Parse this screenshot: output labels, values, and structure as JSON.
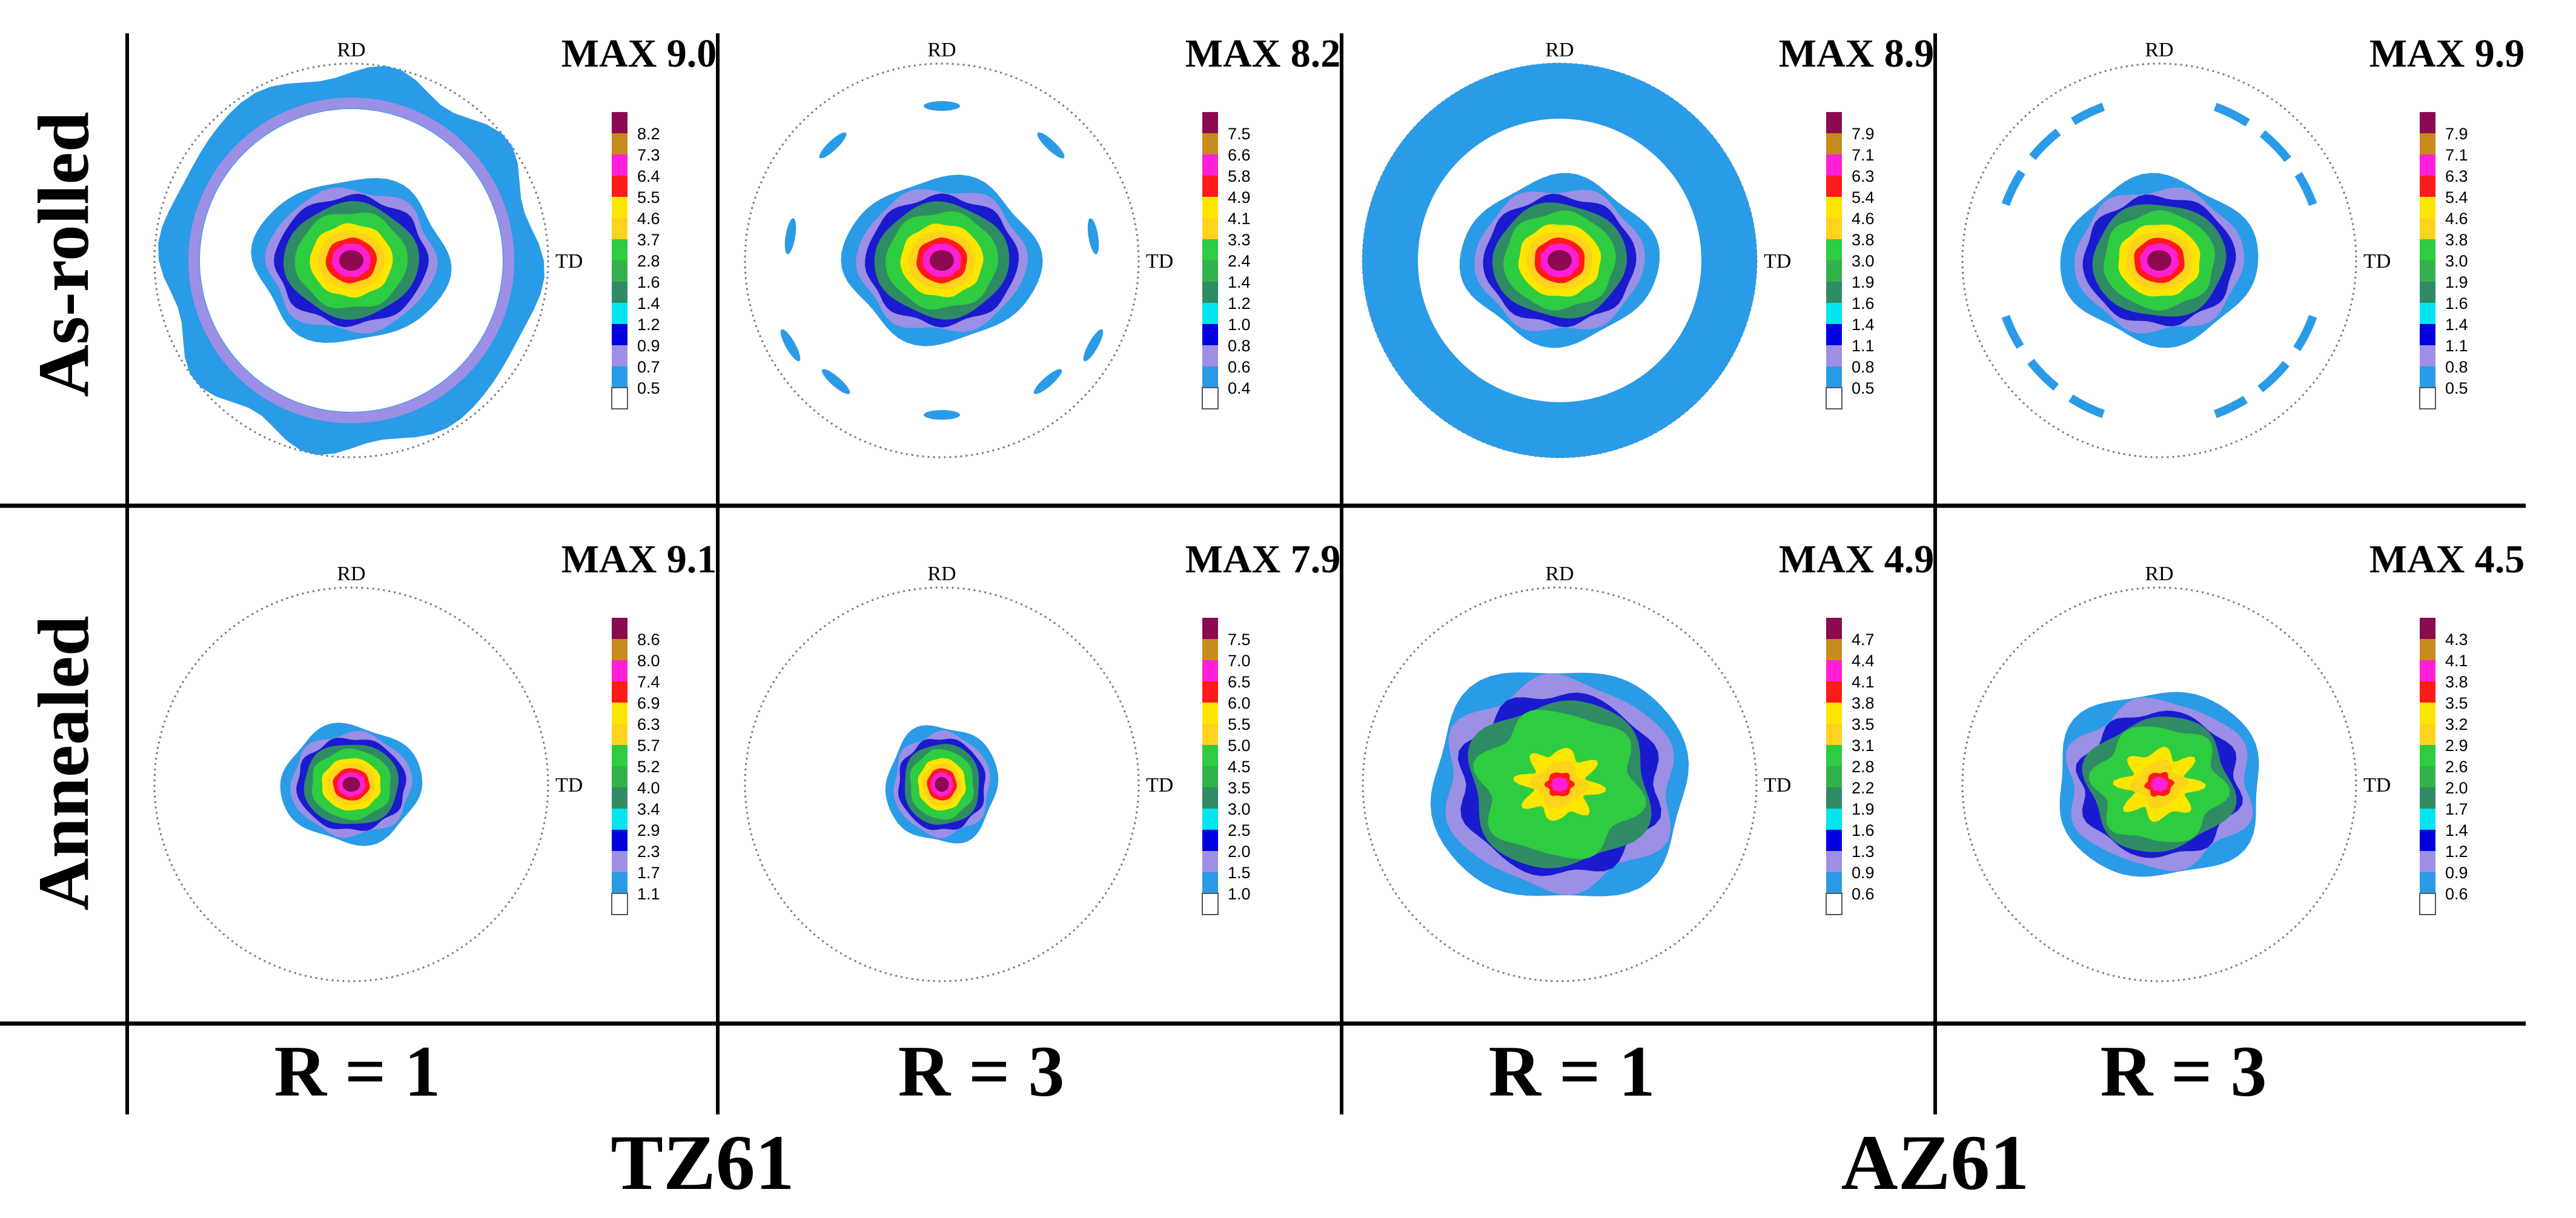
{
  "figure": {
    "rows": [
      {
        "label": "As-rolled"
      },
      {
        "label": "Annealed"
      }
    ],
    "column_labels": [
      "R = 1",
      "R = 3",
      "R = 1",
      "R = 3"
    ],
    "alloys": [
      "TZ61",
      "AZ61"
    ],
    "axis_labels": {
      "rd": "RD",
      "td": "TD"
    },
    "panels": [
      {
        "row": 0,
        "col": 0,
        "max": "MAX 9.0",
        "pattern": "ring-rough",
        "levels": [
          "8.2",
          "7.3",
          "6.4",
          "5.5",
          "4.6",
          "3.7",
          "2.8",
          "1.6",
          "1.4",
          "1.2",
          "0.9",
          "0.7",
          "0.5"
        ]
      },
      {
        "row": 0,
        "col": 1,
        "max": "MAX 8.2",
        "pattern": "dashes",
        "levels": [
          "7.5",
          "6.6",
          "5.8",
          "4.9",
          "4.1",
          "3.3",
          "2.4",
          "1.4",
          "1.2",
          "1.0",
          "0.8",
          "0.6",
          "0.4"
        ]
      },
      {
        "row": 0,
        "col": 2,
        "max": "MAX 8.9",
        "pattern": "ring-full",
        "levels": [
          "7.9",
          "7.1",
          "6.3",
          "5.4",
          "4.6",
          "3.8",
          "3.0",
          "1.9",
          "1.6",
          "1.4",
          "1.1",
          "0.8",
          "0.5"
        ]
      },
      {
        "row": 0,
        "col": 3,
        "max": "MAX 9.9",
        "pattern": "arcs",
        "levels": [
          "7.9",
          "7.1",
          "6.3",
          "5.4",
          "4.6",
          "3.8",
          "3.0",
          "1.9",
          "1.6",
          "1.4",
          "1.1",
          "0.8",
          "0.5"
        ]
      },
      {
        "row": 1,
        "col": 0,
        "max": "MAX 9.1",
        "pattern": "none",
        "levels": [
          "8.6",
          "8.0",
          "7.4",
          "6.9",
          "6.3",
          "5.7",
          "5.2",
          "4.0",
          "3.4",
          "2.9",
          "2.3",
          "1.7",
          "1.1"
        ]
      },
      {
        "row": 1,
        "col": 1,
        "max": "MAX 7.9",
        "pattern": "none",
        "levels": [
          "7.5",
          "7.0",
          "6.5",
          "6.0",
          "5.5",
          "5.0",
          "4.5",
          "3.5",
          "3.0",
          "2.5",
          "2.0",
          "1.5",
          "1.0"
        ]
      },
      {
        "row": 1,
        "col": 2,
        "max": "MAX 4.9",
        "pattern": "spread",
        "levels": [
          "4.7",
          "4.4",
          "4.1",
          "3.8",
          "3.5",
          "3.1",
          "2.8",
          "2.2",
          "1.9",
          "1.6",
          "1.3",
          "0.9",
          "0.6"
        ]
      },
      {
        "row": 1,
        "col": 3,
        "max": "MAX 4.5",
        "pattern": "spread",
        "levels": [
          "4.3",
          "4.1",
          "3.8",
          "3.5",
          "3.2",
          "2.9",
          "2.6",
          "2.0",
          "1.7",
          "1.4",
          "1.2",
          "0.9",
          "0.6"
        ]
      }
    ],
    "level_colors": [
      "#8b0a50",
      "#c88a1e",
      "#ff1fd6",
      "#ff1a1a",
      "#ffe600",
      "#ffd21c",
      "#2ecc40",
      "#32b24a",
      "#2e8b63",
      "#00e5f0",
      "#0000e0",
      "#9b8fe6",
      "#2a9be6",
      "#ffffff"
    ],
    "contour_colors": {
      "outer": "#2a9be6",
      "lavender": "#9b8fe6",
      "blue": "#1a1acf",
      "teal": "#2e8b63",
      "green": "#2ecc40",
      "yellow": "#ffe600",
      "orange": "#ffd21c",
      "red": "#ff1a1a",
      "magenta": "#ff1fd6",
      "maroon": "#8b0a50"
    }
  }
}
